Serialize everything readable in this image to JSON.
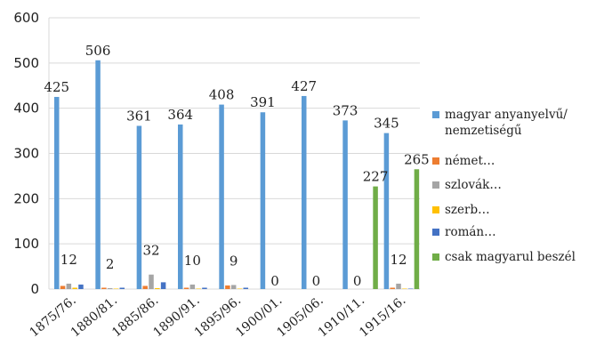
{
  "chart_data": {
    "type": "bar",
    "categories": [
      "1875/76.",
      "1880/81.",
      "1885/86.",
      "1890/91.",
      "1895/96.",
      "1900/01.",
      "1905/06.",
      "1910/11.",
      "1915/16."
    ],
    "series": [
      {
        "name": "magyar anyanyelvű/ nemzetiségű",
        "color": "#5b9bd5",
        "values": [
          425,
          506,
          361,
          364,
          408,
          391,
          427,
          373,
          345
        ]
      },
      {
        "name": "német…",
        "color": "#ed7d31",
        "values": [
          7,
          3,
          7,
          3,
          8,
          0,
          0,
          0,
          3
        ]
      },
      {
        "name": "szlovák…",
        "color": "#a5a5a5",
        "values": [
          12,
          2,
          32,
          10,
          9,
          0,
          0,
          0,
          12
        ]
      },
      {
        "name": "szerb…",
        "color": "#ffc000",
        "values": [
          3,
          1,
          2,
          1,
          1,
          0,
          0,
          0,
          1
        ]
      },
      {
        "name": "román…",
        "color": "#4472c4",
        "values": [
          10,
          3,
          15,
          3,
          3,
          0,
          0,
          0,
          1
        ]
      },
      {
        "name": "csak magyarul beszél",
        "color": "#70ad47",
        "values": [
          null,
          null,
          null,
          null,
          null,
          null,
          null,
          227,
          265
        ]
      }
    ],
    "data_labels": [
      {
        "category": 0,
        "series": 0,
        "text": "425"
      },
      {
        "category": 0,
        "series": 2,
        "text": "12"
      },
      {
        "category": 1,
        "series": 0,
        "text": "506"
      },
      {
        "category": 1,
        "series": 2,
        "text": "2"
      },
      {
        "category": 2,
        "series": 0,
        "text": "361"
      },
      {
        "category": 2,
        "series": 2,
        "text": "32"
      },
      {
        "category": 3,
        "series": 0,
        "text": "364"
      },
      {
        "category": 3,
        "series": 2,
        "text": "10"
      },
      {
        "category": 4,
        "series": 0,
        "text": "408"
      },
      {
        "category": 4,
        "series": 2,
        "text": "9"
      },
      {
        "category": 5,
        "series": 0,
        "text": "391"
      },
      {
        "category": 5,
        "series": 2,
        "text": "0"
      },
      {
        "category": 6,
        "series": 0,
        "text": "427"
      },
      {
        "category": 6,
        "series": 2,
        "text": "0"
      },
      {
        "category": 7,
        "series": 0,
        "text": "373"
      },
      {
        "category": 7,
        "series": 2,
        "text": "0"
      },
      {
        "category": 7,
        "series": 5,
        "text": "227"
      },
      {
        "category": 8,
        "series": 0,
        "text": "345"
      },
      {
        "category": 8,
        "series": 2,
        "text": "12"
      },
      {
        "category": 8,
        "series": 5,
        "text": "265"
      }
    ],
    "y_ticks": [
      "0",
      "100",
      "200",
      "300",
      "400",
      "500",
      "600"
    ],
    "ylim": [
      0,
      600
    ],
    "grid": true,
    "legend_position": "right"
  }
}
